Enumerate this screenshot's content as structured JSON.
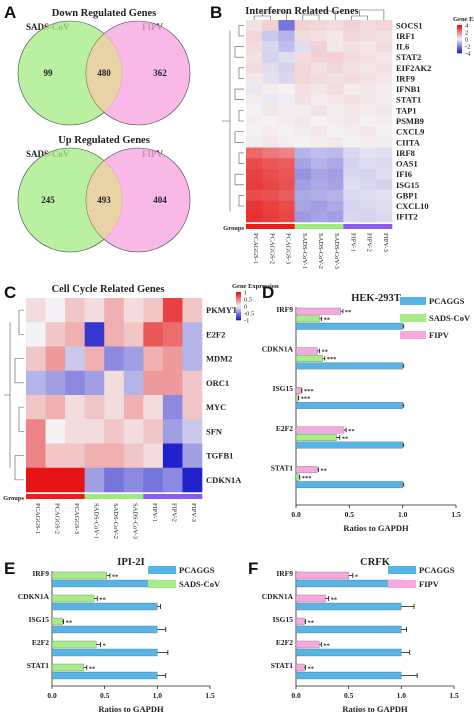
{
  "panel_labels": [
    "A",
    "B",
    "C",
    "D",
    "E",
    "F"
  ],
  "colors": {
    "sads": "#a8ec8a",
    "fipv": "#f8a8e0",
    "pcaggs": "#57b4e6",
    "heat_low": "#2222cc",
    "heat_mid": "#f4f2f4",
    "heat_high": "#e61414",
    "group_pcaggs": "#ee1c1c",
    "group_sads": "#9eea7c",
    "group_fipv": "#8c5cf0"
  },
  "venn": [
    {
      "title": "Down Regulated Genes",
      "left_label": "SADS-CoV",
      "right_label": "FIPV",
      "left_only": "99",
      "both": "480",
      "right_only": "362"
    },
    {
      "title": "Up Regulated Genes",
      "left_label": "SADS-CoV",
      "right_label": "FIPV",
      "left_only": "245",
      "both": "493",
      "right_only": "404"
    }
  ],
  "heat_b": {
    "title": "Interferon Related Genes",
    "legend_title": "Gene Expression",
    "legend_ticks": [
      "4",
      "2",
      "0",
      "-2",
      "-4"
    ],
    "groups_label": "Groups",
    "genes": [
      "SOCS1",
      "IRF1",
      "IL6",
      "STAT2",
      "EIF2AK2",
      "IRF9",
      "IFNB1",
      "STAT1",
      "TAP1",
      "PSMB9",
      "CXCL9",
      "CIITA",
      "IRF8",
      "OAS1",
      "IFI6",
      "ISG15",
      "GBP1",
      "CXCL10",
      "IFIT2"
    ],
    "samples": [
      "PCAGGS-1",
      "PCAGGS-2",
      "PCAGGS-3",
      "SADS-CoV-1",
      "SADS-CoV-2",
      "SADS-CoV-3",
      "FIPV-1",
      "FIPV-2",
      "FIPV-3"
    ],
    "groups": [
      "PCAGGS",
      "PCAGGS",
      "PCAGGS",
      "SADS",
      "SADS",
      "SADS",
      "FIPV",
      "FIPV",
      "FIPV"
    ],
    "values": [
      [
        0.3,
        0.6,
        -2.4,
        0.6,
        0.5,
        0.4,
        0.6,
        0.4,
        0.5
      ],
      [
        0.5,
        -0.8,
        -1.2,
        0.4,
        0.3,
        0.2,
        0.5,
        0.4,
        0.3
      ],
      [
        0.4,
        -0.5,
        -1.0,
        -0.4,
        0.6,
        0.2,
        0.3,
        0.2,
        0.4
      ],
      [
        0.3,
        -0.6,
        -0.4,
        0.4,
        0.6,
        0.6,
        0.4,
        0.3,
        0.2
      ],
      [
        0.4,
        -0.4,
        -0.6,
        0.5,
        0.3,
        0.5,
        0.3,
        0.2,
        0.3
      ],
      [
        0.2,
        -0.3,
        -0.5,
        0.5,
        0.4,
        0.3,
        0.4,
        0.3,
        0.2
      ],
      [
        -0.2,
        0.1,
        0.0,
        0.3,
        0.2,
        0.4,
        0.1,
        0.2,
        0.1
      ],
      [
        0.1,
        -0.2,
        -0.1,
        0.3,
        0.1,
        0.2,
        0.3,
        0.2,
        0.1
      ],
      [
        0.0,
        0.2,
        0.1,
        0.1,
        0.3,
        0.1,
        0.2,
        0.1,
        0.2
      ],
      [
        0.1,
        0.0,
        0.1,
        0.2,
        0.0,
        0.1,
        0.2,
        0.0,
        0.1
      ],
      [
        0.0,
        0.1,
        0.0,
        0.1,
        0.2,
        0.0,
        0.1,
        0.2,
        0.0
      ],
      [
        0.1,
        0.2,
        0.1,
        0.0,
        0.1,
        0.2,
        0.0,
        0.1,
        0.1
      ],
      [
        2.5,
        2.2,
        2.0,
        -1.2,
        -1.0,
        -1.1,
        -0.5,
        -0.3,
        -0.4
      ],
      [
        3.0,
        2.8,
        2.7,
        -1.5,
        -1.2,
        -1.4,
        -0.6,
        -0.4,
        -0.5
      ],
      [
        3.2,
        3.0,
        2.8,
        -1.8,
        -1.5,
        -1.6,
        -0.5,
        -0.6,
        -0.4
      ],
      [
        3.3,
        3.1,
        2.9,
        -1.6,
        -1.4,
        -1.5,
        -0.4,
        -0.5,
        -0.6
      ],
      [
        3.0,
        2.9,
        2.7,
        -1.4,
        -1.3,
        -1.2,
        -0.5,
        -0.4,
        -0.3
      ],
      [
        3.4,
        3.2,
        3.0,
        -1.5,
        -1.6,
        -1.4,
        -0.6,
        -0.5,
        -0.4
      ],
      [
        3.5,
        3.3,
        3.1,
        -1.7,
        -1.5,
        -1.6,
        -0.5,
        -0.6,
        -0.5
      ]
    ]
  },
  "heat_c": {
    "title": "Cell Cycle Related Genes",
    "legend_title": "Gene Expression",
    "legend_ticks": [
      "1",
      "0.5",
      "0",
      "-0.5",
      "-1"
    ],
    "groups_label": "Groups",
    "genes": [
      "PKMYT1",
      "E2F2",
      "MDM2",
      "ORC1",
      "MYC",
      "SFN",
      "TGFB1",
      "CDKN1A"
    ],
    "samples": [
      "PCAGGS-1",
      "PCAGGS-2",
      "PCAGGS-3",
      "SADS-CoV-1",
      "SADS-CoV-2",
      "SADS-CoV-3",
      "FIPV-1",
      "FIPV-2",
      "FIPV-3"
    ],
    "groups": [
      "PCAGGS",
      "PCAGGS",
      "PCAGGS",
      "SADS",
      "SADS",
      "SADS",
      "FIPV",
      "FIPV",
      "FIPV"
    ],
    "values": [
      [
        0.1,
        0.0,
        0.2,
        0.1,
        0.3,
        0.1,
        0.2,
        0.8,
        0.2
      ],
      [
        0.0,
        0.2,
        0.3,
        -0.9,
        0.3,
        0.2,
        0.7,
        0.6,
        -0.3
      ],
      [
        0.2,
        0.4,
        -0.2,
        0.3,
        -0.5,
        -0.4,
        0.3,
        0.4,
        -0.3
      ],
      [
        -0.3,
        -0.4,
        -0.5,
        -0.4,
        0.1,
        -0.3,
        0.4,
        0.4,
        0.2
      ],
      [
        0.2,
        0.3,
        0.1,
        0.2,
        0.1,
        0.3,
        0.1,
        -0.5,
        0.2
      ],
      [
        0.5,
        0.0,
        0.1,
        0.1,
        0.2,
        0.1,
        0.2,
        -0.4,
        -0.2
      ],
      [
        0.5,
        0.2,
        0.2,
        0.3,
        0.3,
        0.2,
        0.1,
        -1.0,
        -0.4
      ],
      [
        1.0,
        1.0,
        1.0,
        -0.4,
        -0.6,
        -0.5,
        -0.6,
        -0.5,
        -1.0
      ]
    ]
  },
  "bar_charts": [
    {
      "title": "HEK-293T",
      "xlabel": "Ratios to GAPDH",
      "xlim": [
        0,
        1.5
      ],
      "ticks": [
        "0.0",
        "0.5",
        "1.0",
        "1.5"
      ],
      "genes": [
        "IRF9",
        "CDKN1A",
        "ISG15",
        "E2F2",
        "STAT1"
      ],
      "series": [
        {
          "name": "PCAGGS",
          "color_key": "pcaggs",
          "values": [
            1.0,
            1.0,
            1.0,
            1.0,
            1.0
          ],
          "err": [
            0.01,
            0.01,
            0.01,
            0.01,
            0.01
          ],
          "sig": [
            "",
            "",
            "",
            "",
            ""
          ]
        },
        {
          "name": "SADS-CoV",
          "color_key": "sads",
          "values": [
            0.22,
            0.25,
            0.02,
            0.38,
            0.03
          ],
          "err": [
            0.02,
            0.02,
            0.005,
            0.03,
            0.005
          ],
          "sig": [
            "**",
            "***",
            "***",
            "**",
            "***"
          ]
        },
        {
          "name": "FIPV",
          "color_key": "fipv",
          "values": [
            0.42,
            0.2,
            0.05,
            0.45,
            0.2
          ],
          "err": [
            0.02,
            0.02,
            0.005,
            0.02,
            0.01
          ],
          "sig": [
            "**",
            "**",
            "***",
            "**",
            "**"
          ]
        }
      ]
    },
    {
      "title": "IPI-2I",
      "xlabel": "Ratios to GAPDH",
      "xlim": [
        0,
        1.5
      ],
      "ticks": [
        "0.0",
        "0.5",
        "1.0",
        "1.5"
      ],
      "genes": [
        "IRF9",
        "CDKN1A",
        "ISG15",
        "E2F2",
        "STAT1"
      ],
      "series": [
        {
          "name": "PCAGGS",
          "color_key": "pcaggs",
          "values": [
            1.0,
            1.0,
            1.0,
            1.0,
            1.0
          ],
          "err": [
            0.05,
            0.03,
            0.08,
            0.1,
            0.08
          ],
          "sig": [
            "",
            "",
            "",
            "",
            ""
          ]
        },
        {
          "name": "SADS-CoV",
          "color_key": "sads",
          "values": [
            0.52,
            0.4,
            0.1,
            0.42,
            0.3
          ],
          "err": [
            0.03,
            0.03,
            0.01,
            0.04,
            0.03
          ],
          "sig": [
            "**",
            "**",
            "**",
            "*",
            "**"
          ]
        }
      ]
    },
    {
      "title": "CRFK",
      "xlabel": "Ratios to GAPDH",
      "xlim": [
        0,
        1.5
      ],
      "ticks": [
        "0.0",
        "0.5",
        "1.0",
        "1.5"
      ],
      "genes": [
        "IRF9",
        "CDKN1A",
        "ISG15",
        "E2F2",
        "STAT1"
      ],
      "series": [
        {
          "name": "PCAGGS",
          "color_key": "pcaggs",
          "values": [
            1.0,
            1.0,
            1.0,
            1.0,
            1.0
          ],
          "err": [
            0.08,
            0.12,
            0.05,
            0.08,
            0.15
          ],
          "sig": [
            "",
            "",
            "",
            "",
            ""
          ]
        },
        {
          "name": "FIPV",
          "color_key": "fipv",
          "values": [
            0.5,
            0.28,
            0.08,
            0.22,
            0.08
          ],
          "err": [
            0.04,
            0.03,
            0.01,
            0.02,
            0.01
          ],
          "sig": [
            "*",
            "**",
            "**",
            "**",
            "**"
          ]
        }
      ]
    }
  ],
  "chart_data": [
    {
      "type": "heatmap",
      "title": "Interferon Related Genes",
      "legend": "Gene Expression",
      "scale": [
        -4,
        4
      ]
    },
    {
      "type": "heatmap",
      "title": "Cell Cycle Related Genes",
      "legend": "Gene Expression",
      "scale": [
        -1,
        1
      ]
    },
    {
      "type": "bar",
      "title": "HEK-293T",
      "xlabel": "Ratios to GAPDH",
      "categories": [
        "IRF9",
        "CDKN1A",
        "ISG15",
        "E2F2",
        "STAT1"
      ],
      "series": [
        {
          "name": "PCAGGS",
          "values": [
            1.0,
            1.0,
            1.0,
            1.0,
            1.0
          ]
        },
        {
          "name": "SADS-CoV",
          "values": [
            0.22,
            0.25,
            0.02,
            0.38,
            0.03
          ]
        },
        {
          "name": "FIPV",
          "values": [
            0.42,
            0.2,
            0.05,
            0.45,
            0.2
          ]
        }
      ]
    },
    {
      "type": "bar",
      "title": "IPI-2I",
      "xlabel": "Ratios to GAPDH",
      "categories": [
        "IRF9",
        "CDKN1A",
        "ISG15",
        "E2F2",
        "STAT1"
      ],
      "series": [
        {
          "name": "PCAGGS",
          "values": [
            1.0,
            1.0,
            1.0,
            1.0,
            1.0
          ]
        },
        {
          "name": "SADS-CoV",
          "values": [
            0.52,
            0.4,
            0.1,
            0.42,
            0.3
          ]
        }
      ]
    },
    {
      "type": "bar",
      "title": "CRFK",
      "xlabel": "Ratios to GAPDH",
      "categories": [
        "IRF9",
        "CDKN1A",
        "ISG15",
        "E2F2",
        "STAT1"
      ],
      "series": [
        {
          "name": "PCAGGS",
          "values": [
            1.0,
            1.0,
            1.0,
            1.0,
            1.0
          ]
        },
        {
          "name": "FIPV",
          "values": [
            0.5,
            0.28,
            0.08,
            0.22,
            0.08
          ]
        }
      ]
    }
  ]
}
